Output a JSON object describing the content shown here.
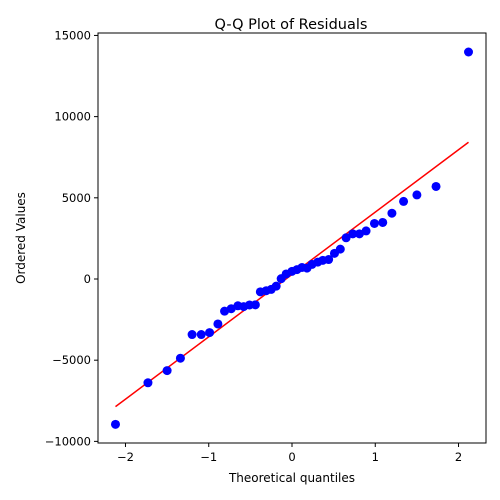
{
  "chart_data": {
    "type": "scatter",
    "title": "Q-Q Plot of Residuals",
    "xlabel": "Theoretical quantiles",
    "ylabel": "Ordered Values",
    "xlim": [
      -2.33,
      2.33
    ],
    "ylim": [
      -10100,
      15150
    ],
    "xticks": [
      -2,
      -1,
      0,
      1,
      2
    ],
    "xtick_labels": [
      "−2",
      "−1",
      "0",
      "1",
      "2"
    ],
    "yticks": [
      -10000,
      -5000,
      0,
      5000,
      10000,
      15000
    ],
    "ytick_labels": [
      "−10000",
      "−5000",
      "0",
      "5000",
      "10000",
      "15000"
    ],
    "grid": false,
    "colors": {
      "points": "#0000ff",
      "fit_line": "#ff0000"
    },
    "points": [
      {
        "x": -2.12,
        "y": -8950
      },
      {
        "x": -1.73,
        "y": -6390
      },
      {
        "x": -1.5,
        "y": -5640
      },
      {
        "x": -1.34,
        "y": -4880
      },
      {
        "x": -1.2,
        "y": -3420
      },
      {
        "x": -1.09,
        "y": -3420
      },
      {
        "x": -0.99,
        "y": -3300
      },
      {
        "x": -0.89,
        "y": -2770
      },
      {
        "x": -0.81,
        "y": -1980
      },
      {
        "x": -0.73,
        "y": -1830
      },
      {
        "x": -0.65,
        "y": -1650
      },
      {
        "x": -0.58,
        "y": -1700
      },
      {
        "x": -0.51,
        "y": -1600
      },
      {
        "x": -0.44,
        "y": -1590
      },
      {
        "x": -0.38,
        "y": -790
      },
      {
        "x": -0.31,
        "y": -720
      },
      {
        "x": -0.25,
        "y": -640
      },
      {
        "x": -0.19,
        "y": -440
      },
      {
        "x": -0.13,
        "y": 20
      },
      {
        "x": -0.07,
        "y": 310
      },
      {
        "x": 0.0,
        "y": 470
      },
      {
        "x": 0.06,
        "y": 580
      },
      {
        "x": 0.12,
        "y": 710
      },
      {
        "x": 0.18,
        "y": 670
      },
      {
        "x": 0.24,
        "y": 900
      },
      {
        "x": 0.31,
        "y": 1040
      },
      {
        "x": 0.37,
        "y": 1150
      },
      {
        "x": 0.44,
        "y": 1200
      },
      {
        "x": 0.51,
        "y": 1580
      },
      {
        "x": 0.58,
        "y": 1840
      },
      {
        "x": 0.65,
        "y": 2540
      },
      {
        "x": 0.73,
        "y": 2780
      },
      {
        "x": 0.81,
        "y": 2780
      },
      {
        "x": 0.89,
        "y": 2960
      },
      {
        "x": 0.99,
        "y": 3420
      },
      {
        "x": 1.09,
        "y": 3480
      },
      {
        "x": 1.2,
        "y": 4050
      },
      {
        "x": 1.34,
        "y": 4780
      },
      {
        "x": 1.5,
        "y": 5180
      },
      {
        "x": 1.73,
        "y": 5700
      },
      {
        "x": 2.12,
        "y": 13980
      }
    ],
    "fit_line": {
      "x": [
        -2.12,
        2.12
      ],
      "y": [
        -7860,
        8420
      ]
    }
  }
}
